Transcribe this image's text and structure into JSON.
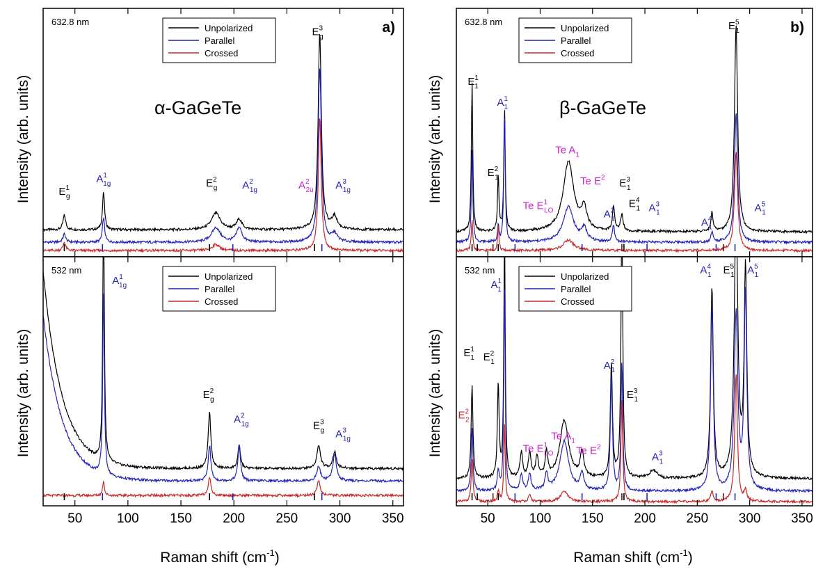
{
  "figure": {
    "xlabel": "Raman shift (cm",
    "xlabel_sup": "-1",
    "xlabel_close": ")",
    "ylabel": "Intensity (arb. units)"
  },
  "colors": {
    "unpolarized": "#000000",
    "parallel": "#2323b4",
    "crossed": "#c62828",
    "magenta": "#cc22cc",
    "marker_dark": "#7a0a0a"
  },
  "chart_data": [
    {
      "type": "line",
      "panel": "a-top",
      "panel_label": "a)",
      "laser": "632.8 nm",
      "material": "α-GaGeTe",
      "xlim": [
        20,
        360
      ],
      "xticks": [
        50,
        100,
        150,
        200,
        250,
        300,
        350
      ],
      "legend": [
        "Unpolarized",
        "Parallel",
        "Crossed"
      ],
      "series": [
        {
          "name": "Unpolarized",
          "baseline": 0.13,
          "peaks": [
            [
              40,
              0.07,
              1.5
            ],
            [
              77,
              0.18,
              1.2
            ],
            [
              183,
              0.08,
              5
            ],
            [
              205,
              0.05,
              3
            ],
            [
              281,
              0.95,
              1.8
            ],
            [
              295,
              0.06,
              3
            ]
          ]
        },
        {
          "name": "Parallel",
          "baseline": 0.07,
          "peaks": [
            [
              40,
              0.04,
              1.5
            ],
            [
              77,
              0.12,
              1.2
            ],
            [
              183,
              0.07,
              5
            ],
            [
              205,
              0.07,
              3
            ],
            [
              281,
              0.85,
              1.8
            ],
            [
              295,
              0.04,
              3
            ]
          ]
        },
        {
          "name": "Crossed",
          "baseline": 0.03,
          "peaks": [
            [
              40,
              0.04,
              1.5
            ],
            [
              183,
              0.03,
              4
            ],
            [
              281,
              0.65,
              1.6
            ]
          ]
        }
      ],
      "annotations": [
        {
          "text": "E",
          "sub": "g",
          "sup": "1",
          "x": 40,
          "y": 0.3,
          "color": "#000000"
        },
        {
          "text": "A",
          "sub": "1g",
          "sup": "1",
          "x": 77,
          "y": 0.36,
          "color": "#2323b4"
        },
        {
          "text": "E",
          "sub": "g",
          "sup": "2",
          "x": 179,
          "y": 0.34,
          "color": "#000000"
        },
        {
          "text": "A",
          "sub": "1g",
          "sup": "2",
          "x": 215,
          "y": 0.33,
          "color": "#2323b4"
        },
        {
          "text": "A",
          "sub": "2u",
          "sup": "2",
          "x": 268,
          "y": 0.33,
          "color": "#cc22cc"
        },
        {
          "text": "E",
          "sub": "g",
          "sup": "3",
          "x": 279,
          "y": 1.07,
          "color": "#000000"
        },
        {
          "text": "A",
          "sub": "1g",
          "sup": "3",
          "x": 303,
          "y": 0.33,
          "color": "#2323b4"
        }
      ],
      "markers": [
        {
          "x": 40,
          "color": "#000000"
        },
        {
          "x": 76,
          "color": "#2323b4"
        },
        {
          "x": 177,
          "color": "#000000"
        },
        {
          "x": 199,
          "color": "#2323b4"
        },
        {
          "x": 276,
          "color": "#000000"
        },
        {
          "x": 283,
          "color": "#2323b4"
        }
      ]
    },
    {
      "type": "line",
      "panel": "a-bottom",
      "laser": "532 nm",
      "xlim": [
        20,
        360
      ],
      "xticks": [
        50,
        100,
        150,
        200,
        250,
        300,
        350
      ],
      "legend": [
        "Unpolarized",
        "Parallel",
        "Crossed"
      ],
      "series": [
        {
          "name": "Unpolarized",
          "baseline": 0.18,
          "decay": [
            0.95,
            18
          ],
          "peaks": [
            [
              77,
              1.2,
              0.9
            ],
            [
              177,
              0.27,
              1.5
            ],
            [
              205,
              0.11,
              1.5
            ],
            [
              280,
              0.11,
              2
            ],
            [
              295,
              0.08,
              2
            ]
          ]
        },
        {
          "name": "Parallel",
          "baseline": 0.12,
          "decay": [
            0.8,
            18
          ],
          "peaks": [
            [
              77,
              0.9,
              0.9
            ],
            [
              177,
              0.17,
              1.5
            ],
            [
              205,
              0.17,
              1.5
            ],
            [
              280,
              0.07,
              2
            ],
            [
              295,
              0.13,
              2
            ]
          ]
        },
        {
          "name": "Crossed",
          "baseline": 0.05,
          "peaks": [
            [
              77,
              0.07,
              1
            ],
            [
              177,
              0.09,
              1.5
            ],
            [
              280,
              0.07,
              1.8
            ]
          ]
        }
      ],
      "annotations": [
        {
          "text": "A",
          "sub": "1g",
          "sup": "1",
          "x": 92,
          "y": 1.07,
          "color": "#2323b4"
        },
        {
          "text": "E",
          "sub": "g",
          "sup": "2",
          "x": 176,
          "y": 0.52,
          "color": "#000000"
        },
        {
          "text": "A",
          "sub": "1g",
          "sup": "2",
          "x": 207,
          "y": 0.4,
          "color": "#2323b4"
        },
        {
          "text": "E",
          "sub": "g",
          "sup": "3",
          "x": 280,
          "y": 0.37,
          "color": "#000000"
        },
        {
          "text": "A",
          "sub": "1g",
          "sup": "3",
          "x": 303,
          "y": 0.33,
          "color": "#2323b4"
        }
      ],
      "markers": [
        {
          "x": 40,
          "color": "#000000"
        },
        {
          "x": 76,
          "color": "#2323b4"
        },
        {
          "x": 177,
          "color": "#000000"
        },
        {
          "x": 199,
          "color": "#2323b4"
        },
        {
          "x": 276,
          "color": "#000000"
        },
        {
          "x": 283,
          "color": "#2323b4"
        }
      ]
    },
    {
      "type": "line",
      "panel": "b-top",
      "panel_label": "b)",
      "laser": "632.8 nm",
      "material": "β-GaGeTe",
      "xlim": [
        20,
        360
      ],
      "xticks": [
        50,
        100,
        150,
        200,
        250,
        300,
        350
      ],
      "legend": [
        "Unpolarized",
        "Parallel",
        "Crossed"
      ],
      "series": [
        {
          "name": "Unpolarized",
          "baseline": 0.12,
          "peaks": [
            [
              35,
              0.72,
              0.8
            ],
            [
              60,
              0.28,
              0.8
            ],
            [
              66,
              0.6,
              0.8
            ],
            [
              127,
              0.34,
              6
            ],
            [
              142,
              0.1,
              3
            ],
            [
              170,
              0.12,
              1.2
            ],
            [
              178,
              0.08,
              1.5
            ],
            [
              264,
              0.09,
              1.2
            ],
            [
              287,
              1.0,
              1.8
            ]
          ]
        },
        {
          "name": "Parallel",
          "baseline": 0.07,
          "peaks": [
            [
              35,
              0.45,
              0.8
            ],
            [
              60,
              0.08,
              0.8
            ],
            [
              66,
              0.62,
              0.8
            ],
            [
              127,
              0.17,
              6
            ],
            [
              142,
              0.06,
              3
            ],
            [
              170,
              0.08,
              1.2
            ],
            [
              264,
              0.05,
              1.2
            ],
            [
              287,
              0.62,
              1.8
            ]
          ]
        },
        {
          "name": "Crossed",
          "baseline": 0.03,
          "peaks": [
            [
              35,
              0.15,
              0.8
            ],
            [
              60,
              0.12,
              0.8
            ],
            [
              127,
              0.05,
              6
            ],
            [
              287,
              0.48,
              1.8
            ]
          ]
        }
      ],
      "annotations": [
        {
          "text": "E",
          "sub": "1",
          "sup": "1",
          "x": 36,
          "y": 0.83,
          "color": "#000000"
        },
        {
          "text": "E",
          "sub": "1",
          "sup": "2",
          "x": 55,
          "y": 0.39,
          "color": "#000000"
        },
        {
          "text": "A",
          "sub": "1",
          "sup": "1",
          "x": 64,
          "y": 0.73,
          "color": "#2323b4"
        },
        {
          "text": "Te E",
          "sub": "LO",
          "sup": "1",
          "x": 98,
          "y": 0.23,
          "color": "#cc22cc"
        },
        {
          "text": "Te A",
          "sub": "1",
          "sup": "",
          "x": 126,
          "y": 0.5,
          "color": "#cc22cc"
        },
        {
          "text": "Te E",
          "sub": "",
          "sup": "2",
          "x": 150,
          "y": 0.35,
          "color": "#cc22cc"
        },
        {
          "text": "A",
          "sub": "1",
          "sup": "2",
          "x": 166,
          "y": 0.19,
          "color": "#2323b4"
        },
        {
          "text": "E",
          "sub": "1",
          "sup": "3",
          "x": 181,
          "y": 0.34,
          "color": "#000000"
        },
        {
          "text": "E",
          "sub": "1",
          "sup": "4",
          "x": 190,
          "y": 0.24,
          "color": "#000000"
        },
        {
          "text": "A",
          "sub": "1",
          "sup": "3",
          "x": 209,
          "y": 0.22,
          "color": "#2323b4"
        },
        {
          "text": "A",
          "sub": "1",
          "sup": "4",
          "x": 259,
          "y": 0.15,
          "color": "#2323b4"
        },
        {
          "text": "E",
          "sub": "1",
          "sup": "5",
          "x": 285,
          "y": 1.1,
          "color": "#000000"
        },
        {
          "text": "A",
          "sub": "1",
          "sup": "5",
          "x": 310,
          "y": 0.22,
          "color": "#2323b4"
        }
      ],
      "markers": [
        {
          "x": 35,
          "color": "#000000"
        },
        {
          "x": 40,
          "color": "#000000"
        },
        {
          "x": 55,
          "color": "#7a0a0a"
        },
        {
          "x": 60,
          "color": "#000000"
        },
        {
          "x": 76,
          "color": "#2323b4"
        },
        {
          "x": 140,
          "color": "#2323b4"
        },
        {
          "x": 178,
          "color": "#7a0a0a"
        },
        {
          "x": 180,
          "color": "#000000"
        },
        {
          "x": 202,
          "color": "#2323b4"
        },
        {
          "x": 268,
          "color": "#2323b4"
        },
        {
          "x": 275,
          "color": "#7a0a0a"
        },
        {
          "x": 286,
          "color": "#2323b4"
        }
      ]
    },
    {
      "type": "line",
      "panel": "b-bottom",
      "laser": "532 nm",
      "xlim": [
        20,
        360
      ],
      "xticks": [
        50,
        100,
        150,
        200,
        250,
        300,
        350
      ],
      "legend": [
        "Unpolarized",
        "Parallel",
        "Crossed"
      ],
      "series": [
        {
          "name": "Unpolarized",
          "baseline": 0.13,
          "peaks": [
            [
              35,
              0.45,
              1
            ],
            [
              60,
              0.45,
              1
            ],
            [
              66,
              1.2,
              0.8
            ],
            [
              82,
              0.12,
              1.5
            ],
            [
              90,
              0.12,
              1.5
            ],
            [
              97,
              0.1,
              1.5
            ],
            [
              106,
              0.12,
              1.5
            ],
            [
              123,
              0.28,
              5
            ],
            [
              140,
              0.12,
              2
            ],
            [
              168,
              0.55,
              1.2
            ],
            [
              178,
              1.3,
              1
            ],
            [
              208,
              0.04,
              4
            ],
            [
              264,
              0.92,
              1.5
            ],
            [
              287,
              1.3,
              2
            ],
            [
              296,
              1.0,
              1.5
            ]
          ]
        },
        {
          "name": "Parallel",
          "baseline": 0.07,
          "peaks": [
            [
              35,
              0.3,
              1
            ],
            [
              60,
              0.1,
              1
            ],
            [
              66,
              1.0,
              0.8
            ],
            [
              82,
              0.08,
              1.5
            ],
            [
              90,
              0.08,
              1.5
            ],
            [
              106,
              0.08,
              1.5
            ],
            [
              123,
              0.24,
              5
            ],
            [
              140,
              0.08,
              2
            ],
            [
              168,
              0.55,
              1.2
            ],
            [
              178,
              0.62,
              1
            ],
            [
              264,
              0.9,
              1.5
            ],
            [
              287,
              0.85,
              2
            ],
            [
              296,
              0.95,
              1.5
            ]
          ]
        },
        {
          "name": "Crossed",
          "baseline": 0.02,
          "peaks": [
            [
              35,
              0.2,
              1
            ],
            [
              60,
              0.05,
              1
            ],
            [
              66,
              0.38,
              0.8
            ],
            [
              90,
              0.03,
              1.5
            ],
            [
              123,
              0.05,
              4
            ],
            [
              178,
              0.5,
              1
            ],
            [
              264,
              0.05,
              1.5
            ],
            [
              287,
              0.62,
              1.5
            ],
            [
              296,
              0.05,
              1.5
            ]
          ]
        }
      ],
      "annotations": [
        {
          "text": "E",
          "sub": "1",
          "sup": "1",
          "x": 32,
          "y": 0.72,
          "color": "#000000"
        },
        {
          "text": "E",
          "sub": "2",
          "sup": "2",
          "x": 27,
          "y": 0.42,
          "color": "#c62828"
        },
        {
          "text": "E",
          "sub": "1",
          "sup": "2",
          "x": 51,
          "y": 0.7,
          "color": "#000000"
        },
        {
          "text": "A",
          "sub": "1",
          "sup": "1",
          "x": 58,
          "y": 1.05,
          "color": "#2323b4"
        },
        {
          "text": "Te E",
          "sub": "LO",
          "sup": "1",
          "x": 98,
          "y": 0.26,
          "color": "#cc22cc"
        },
        {
          "text": "Te A",
          "sub": "1",
          "sup": "",
          "x": 122,
          "y": 0.32,
          "color": "#cc22cc"
        },
        {
          "text": "Te E",
          "sub": "",
          "sup": "2",
          "x": 146,
          "y": 0.25,
          "color": "#cc22cc"
        },
        {
          "text": "A",
          "sub": "1",
          "sup": "2",
          "x": 166,
          "y": 0.66,
          "color": "#2323b4"
        },
        {
          "text": "E",
          "sub": "1",
          "sup": "3",
          "x": 188,
          "y": 0.52,
          "color": "#000000"
        },
        {
          "text": "A",
          "sub": "1",
          "sup": "3",
          "x": 212,
          "y": 0.22,
          "color": "#2323b4"
        },
        {
          "text": "A",
          "sub": "1",
          "sup": "4",
          "x": 258,
          "y": 1.12,
          "color": "#2323b4"
        },
        {
          "text": "E",
          "sub": "1",
          "sup": "5",
          "x": 280,
          "y": 1.12,
          "color": "#000000"
        },
        {
          "text": "A",
          "sub": "1",
          "sup": "5",
          "x": 303,
          "y": 1.12,
          "color": "#2323b4"
        }
      ],
      "markers": [
        {
          "x": 35,
          "color": "#000000"
        },
        {
          "x": 40,
          "color": "#000000"
        },
        {
          "x": 55,
          "color": "#7a0a0a"
        },
        {
          "x": 60,
          "color": "#000000"
        },
        {
          "x": 76,
          "color": "#2323b4"
        },
        {
          "x": 140,
          "color": "#2323b4"
        },
        {
          "x": 178,
          "color": "#7a0a0a"
        },
        {
          "x": 180,
          "color": "#000000"
        },
        {
          "x": 202,
          "color": "#2323b4"
        },
        {
          "x": 268,
          "color": "#2323b4"
        },
        {
          "x": 275,
          "color": "#7a0a0a"
        },
        {
          "x": 286,
          "color": "#2323b4"
        }
      ]
    }
  ]
}
